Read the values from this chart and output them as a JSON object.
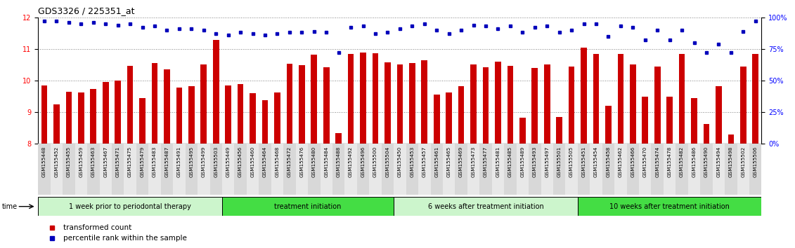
{
  "title": "GDS3326 / 225351_at",
  "xlabels": [
    "GSM155448",
    "GSM155452",
    "GSM155455",
    "GSM155459",
    "GSM155463",
    "GSM155467",
    "GSM155471",
    "GSM155475",
    "GSM155479",
    "GSM155483",
    "GSM155487",
    "GSM155491",
    "GSM155495",
    "GSM155499",
    "GSM155503",
    "GSM155449",
    "GSM155456",
    "GSM155460",
    "GSM155464",
    "GSM155468",
    "GSM155472",
    "GSM155476",
    "GSM155480",
    "GSM155484",
    "GSM155488",
    "GSM155492",
    "GSM155496",
    "GSM155500",
    "GSM155504",
    "GSM155450",
    "GSM155453",
    "GSM155457",
    "GSM155461",
    "GSM155465",
    "GSM155469",
    "GSM155473",
    "GSM155477",
    "GSM155481",
    "GSM155485",
    "GSM155489",
    "GSM155493",
    "GSM155497",
    "GSM155501",
    "GSM155505",
    "GSM155451",
    "GSM155454",
    "GSM155458",
    "GSM155462",
    "GSM155466",
    "GSM155470",
    "GSM155474",
    "GSM155478",
    "GSM155482",
    "GSM155486",
    "GSM155490",
    "GSM155494",
    "GSM155498",
    "GSM155502",
    "GSM155506"
  ],
  "red_values": [
    9.85,
    9.25,
    9.65,
    9.62,
    9.73,
    9.95,
    10.0,
    10.47,
    9.45,
    10.55,
    10.35,
    9.78,
    9.82,
    10.52,
    11.28,
    9.85,
    9.9,
    9.61,
    9.37,
    9.62,
    10.53,
    10.48,
    10.82,
    10.42,
    8.35,
    10.85,
    10.88,
    10.86,
    10.58,
    10.5,
    10.55,
    10.65,
    9.55,
    9.62,
    9.82,
    10.5,
    10.42,
    10.6,
    10.47,
    8.82,
    10.4,
    10.5,
    8.85,
    10.45,
    11.05,
    10.85,
    9.2,
    10.85,
    10.5,
    9.5,
    10.45,
    9.5,
    10.85,
    9.45,
    8.62,
    9.82,
    8.3,
    10.45,
    10.85
  ],
  "blue_values": [
    97,
    97,
    96,
    95,
    96,
    95,
    94,
    95,
    92,
    93,
    90,
    91,
    91,
    90,
    87,
    86,
    88,
    87,
    86,
    87,
    88,
    88,
    89,
    88,
    72,
    92,
    93,
    87,
    88,
    91,
    93,
    95,
    90,
    87,
    90,
    94,
    93,
    91,
    93,
    88,
    92,
    93,
    88,
    90,
    95,
    95,
    85,
    93,
    92,
    82,
    90,
    82,
    90,
    80,
    72,
    79,
    72,
    89,
    97
  ],
  "ylim_left": [
    8.0,
    12.0
  ],
  "ylim_right": [
    0,
    100
  ],
  "yticks_left": [
    8,
    9,
    10,
    11,
    12
  ],
  "hlines": [
    9.0,
    10.0,
    11.0
  ],
  "groups": [
    {
      "label": "1 week prior to periodontal therapy",
      "start": 0,
      "end": 14,
      "color": "#ccf5cc"
    },
    {
      "label": "treatment initiation",
      "start": 15,
      "end": 28,
      "color": "#44dd44"
    },
    {
      "label": "6 weeks after treatment initiation",
      "start": 29,
      "end": 43,
      "color": "#ccf5cc"
    },
    {
      "label": "10 weeks after treatment initiation",
      "start": 44,
      "end": 58,
      "color": "#44dd44"
    }
  ],
  "bar_color": "#cc0000",
  "dot_color": "#0000bb",
  "legend_red": "transformed count",
  "legend_blue": "percentile rank within the sample"
}
